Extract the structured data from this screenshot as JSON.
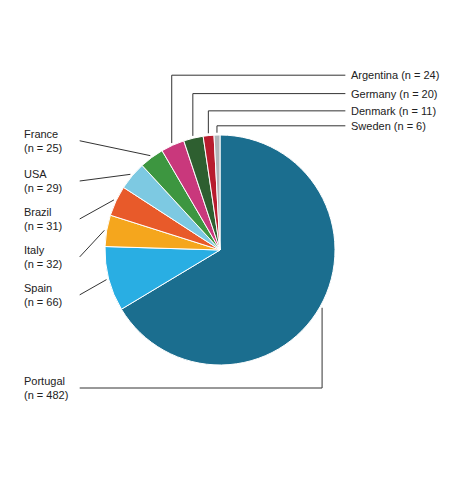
{
  "chart_data": {
    "type": "pie",
    "categories": [
      "Portugal",
      "Spain",
      "Italy",
      "Brazil",
      "USA",
      "France",
      "Argentina",
      "Germany",
      "Denmark",
      "Sweden"
    ],
    "values": [
      482,
      66,
      32,
      31,
      29,
      25,
      24,
      20,
      11,
      6
    ],
    "colors": [
      "#1b6e8f",
      "#29aee3",
      "#f5a61d",
      "#e85a2a",
      "#7dc9e2",
      "#3d9640",
      "#c9387c",
      "#2e5f30",
      "#b81c2e",
      "#b0b4b8"
    ],
    "value_labels": [
      "Portugal\n(n = 482)",
      "Spain\n(n = 66)",
      "Italy\n(n = 32)",
      "Brazil\n(n = 31)",
      "USA\n(n = 29)",
      "France\n(n = 25)",
      "Argentina (n = 24)",
      "Germany (n = 20)",
      "Denmark (n = 11)",
      "Sweden (n = 6)"
    ]
  }
}
